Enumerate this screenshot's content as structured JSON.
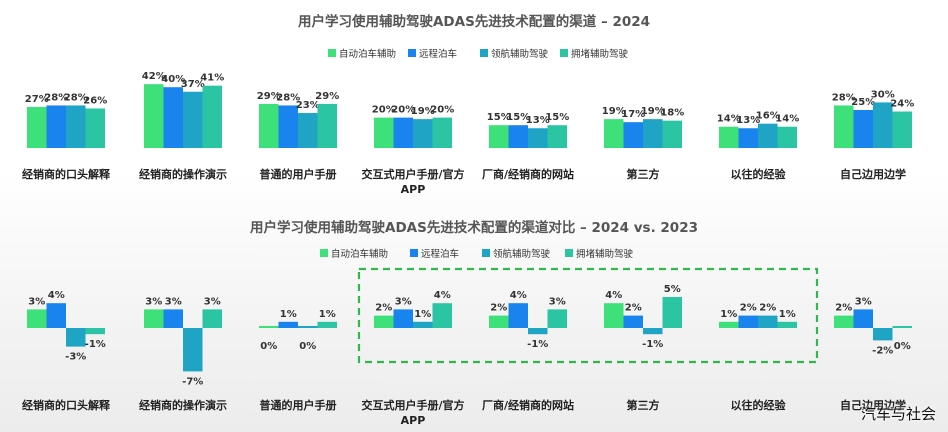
{
  "chart_data": [
    {
      "type": "bar",
      "title": "用户学习使用辅助驾驶ADAS先进技术配置的渠道 – 2024",
      "categories": [
        "经销商的口头解释",
        "经销商的操作演示",
        "普通的用户手册",
        "交互式用户手册/官方APP",
        "厂商/经销商的网站",
        "第三方",
        "以往的经验",
        "自己边用边学"
      ],
      "series": [
        {
          "name": "自动泊车辅助",
          "color": "#3ee07a",
          "values": [
            27,
            42,
            29,
            20,
            15,
            19,
            14,
            28
          ]
        },
        {
          "name": "远程泊车",
          "color": "#1a84ee",
          "values": [
            28,
            40,
            28,
            20,
            15,
            17,
            13,
            25
          ]
        },
        {
          "name": "领航辅助驾驶",
          "color": "#20a4c6",
          "values": [
            28,
            37,
            23,
            19,
            13,
            19,
            16,
            30
          ]
        },
        {
          "name": "拥堵辅助驾驶",
          "color": "#2cc5a4",
          "values": [
            26,
            41,
            29,
            20,
            15,
            18,
            14,
            24
          ]
        }
      ],
      "value_format": "{v}%",
      "ylim": [
        0,
        45
      ]
    },
    {
      "type": "bar",
      "title": "用户学习使用辅助驾驶ADAS先进技术配置的渠道对比 – 2024 vs. 2023",
      "categories": [
        "经销商的口头解释",
        "经销商的操作演示",
        "普通的用户手册",
        "交互式用户手册/官方APP",
        "厂商/经销商的网站",
        "第三方",
        "以往的经验",
        "自己边用边学"
      ],
      "series": [
        {
          "name": "自动泊车辅助",
          "color": "#3ee07a",
          "values": [
            3,
            3,
            0,
            2,
            2,
            4,
            1,
            2
          ]
        },
        {
          "name": "远程泊车",
          "color": "#1a84ee",
          "values": [
            4,
            3,
            1,
            3,
            4,
            2,
            2,
            3
          ]
        },
        {
          "name": "领航辅助驾驶",
          "color": "#20a4c6",
          "values": [
            -3,
            -7,
            0,
            1,
            -1,
            -1,
            2,
            -2
          ]
        },
        {
          "name": "拥堵辅助驾驶",
          "color": "#2cc5a4",
          "values": [
            -1,
            3,
            1,
            4,
            3,
            5,
            1,
            0
          ]
        }
      ],
      "value_format": "{v}%",
      "ylim": [
        -7,
        5
      ],
      "highlight": {
        "categories": [
          3,
          4,
          5,
          6
        ],
        "style": "green-dashed-box"
      }
    }
  ],
  "watermark": "汽车与社会"
}
